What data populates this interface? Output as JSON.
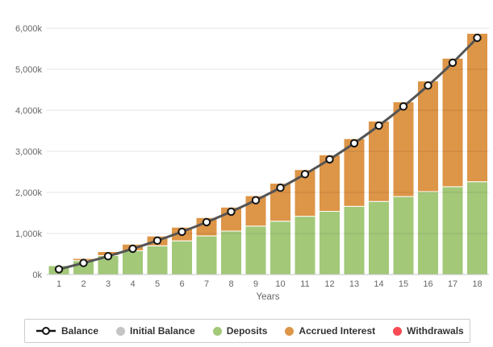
{
  "chart_data": {
    "type": "combo",
    "title": "",
    "categories": [
      1,
      2,
      3,
      4,
      5,
      6,
      7,
      8,
      9,
      10,
      11,
      12,
      13,
      14,
      15,
      16,
      17,
      18
    ],
    "xlabel": "Years",
    "ylabel": "",
    "ylim": [
      0,
      6000
    ],
    "y_unit": "k (thousands)",
    "y_tick_labels": [
      "0k",
      "1,000k",
      "2,000k",
      "3,000k",
      "4,000k",
      "5,000k",
      "6,000k"
    ],
    "grid": true,
    "legend_position": "bottom",
    "stacking": "columns stacked: Initial Balance + Deposits + Accrued Interest (Withdrawals negative)",
    "series": [
      {
        "name": "Balance",
        "type": "spline",
        "color": "#545454",
        "marker": {
          "fill": "#ffffff",
          "stroke": "#141414"
        },
        "values": [
          130,
          282,
          448,
          629,
          827,
          1042,
          1276,
          1532,
          1810,
          2114,
          2445,
          2806,
          3199,
          3627,
          4095,
          4604,
          5159,
          5764
        ]
      },
      {
        "name": "Initial Balance",
        "type": "column",
        "color": "#c5c5c5",
        "values": [
          0,
          0,
          0,
          0,
          0,
          0,
          0,
          0,
          0,
          0,
          0,
          0,
          0,
          0,
          0,
          0,
          0,
          0
        ]
      },
      {
        "name": "Deposits",
        "type": "column",
        "color": "#a2c878",
        "values": [
          220,
          340,
          460,
          580,
          700,
          820,
          940,
          1060,
          1180,
          1300,
          1420,
          1540,
          1660,
          1780,
          1900,
          2020,
          2140,
          2260
        ]
      },
      {
        "name": "Accrued Interest",
        "type": "column",
        "color": "#dd9547",
        "values": [
          20,
          52,
          98,
          159,
          237,
          332,
          446,
          582,
          740,
          924,
          1135,
          1376,
          1649,
          1957,
          2305,
          2694,
          3129,
          3614
        ]
      },
      {
        "name": "Withdrawals",
        "type": "column",
        "color": "#fa4b53",
        "values": [
          0,
          0,
          0,
          0,
          0,
          0,
          0,
          0,
          0,
          0,
          0,
          0,
          0,
          0,
          0,
          0,
          0,
          0
        ]
      }
    ]
  },
  "axes": {
    "x_title": "Years",
    "x_labels": [
      "1",
      "2",
      "3",
      "4",
      "5",
      "6",
      "7",
      "8",
      "9",
      "10",
      "11",
      "12",
      "13",
      "14",
      "15",
      "16",
      "17",
      "18"
    ],
    "label_color": "#666666"
  },
  "legend": {
    "items": [
      {
        "label": "Balance",
        "color": "#545454",
        "icon": "line-circle-marker"
      },
      {
        "label": "Initial Balance",
        "color": "#c5c5c5",
        "icon": "dot"
      },
      {
        "label": "Deposits",
        "color": "#a2c878",
        "icon": "dot"
      },
      {
        "label": "Accrued Interest",
        "color": "#dd9547",
        "icon": "dot"
      },
      {
        "label": "Withdrawals",
        "color": "#fa4b53",
        "icon": "dot"
      }
    ]
  }
}
